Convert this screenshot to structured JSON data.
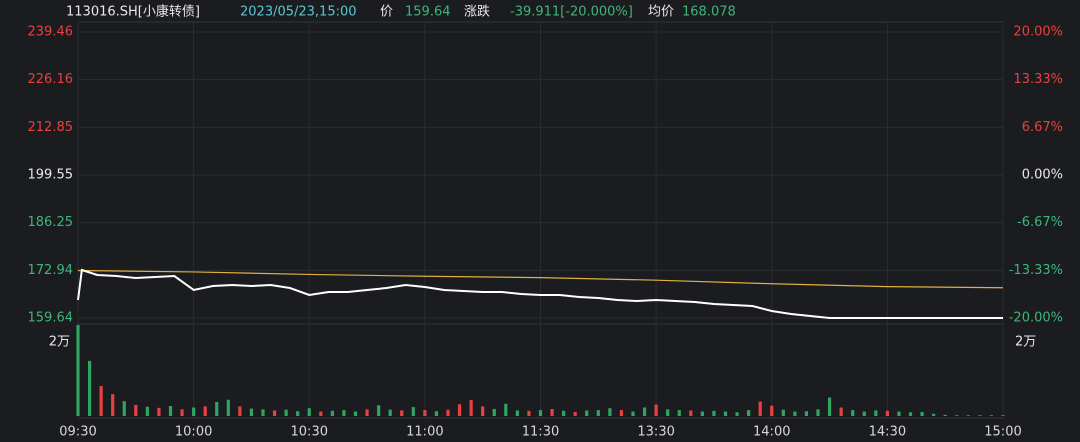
{
  "chart_data": {
    "type": "intraday",
    "header": {
      "code": "113016.SH[小康转债]",
      "time": "2023/05/23,15:00",
      "price_label": "价",
      "price": 159.64,
      "change_label": "涨跌",
      "change": "-39.911[-20.000%]",
      "avg_label": "均价",
      "avg": 168.078
    },
    "prev_close": 199.55,
    "up_color": "#e8413f",
    "down_color": "#2fa563",
    "xlim": [
      0,
      240
    ],
    "xticks": [
      {
        "value": 0,
        "label": "09:30"
      },
      {
        "value": 30,
        "label": "10:00"
      },
      {
        "value": 60,
        "label": "10:30"
      },
      {
        "value": 90,
        "label": "11:00"
      },
      {
        "value": 120,
        "label": "11:30"
      },
      {
        "value": 150,
        "label": "13:30"
      },
      {
        "value": 180,
        "label": "14:00"
      },
      {
        "value": 210,
        "label": "14:30"
      },
      {
        "value": 240,
        "label": "15:00"
      }
    ],
    "ylim": [
      159.64,
      239.46
    ],
    "yticks": [
      239.46,
      226.16,
      212.85,
      199.55,
      186.25,
      172.94,
      159.64
    ],
    "y2lim": [
      -20,
      20
    ],
    "y2ticks": [
      {
        "value": 20,
        "label": "20.00%"
      },
      {
        "value": 13.33,
        "label": "13.33%"
      },
      {
        "value": 6.67,
        "label": "6.67%"
      },
      {
        "value": 0,
        "label": "0.00%"
      },
      {
        "value": -6.67,
        "label": "-6.67%"
      },
      {
        "value": -13.33,
        "label": "-13.33%"
      },
      {
        "value": -20,
        "label": "-20.00%"
      }
    ],
    "series": [
      {
        "color": "#ffffff",
        "x": [
          0,
          1,
          5,
          10,
          15,
          20,
          25,
          30,
          35,
          40,
          45,
          50,
          55,
          60,
          65,
          70,
          75,
          80,
          85,
          90,
          95,
          100,
          105,
          110,
          115,
          120,
          125,
          130,
          135,
          140,
          145,
          150,
          155,
          160,
          165,
          170,
          175,
          180,
          185,
          190,
          195,
          200,
          205,
          210,
          215,
          220,
          225,
          230,
          235,
          240
        ],
        "values": [
          164.66,
          173.04,
          171.64,
          171.36,
          170.8,
          171.08,
          171.36,
          167.46,
          168.57,
          168.85,
          168.57,
          168.85,
          168.01,
          166.06,
          166.9,
          166.9,
          167.46,
          168.01,
          168.85,
          168.29,
          167.46,
          167.18,
          166.9,
          166.9,
          166.34,
          166.06,
          166.06,
          165.5,
          165.22,
          164.66,
          164.38,
          164.66,
          164.38,
          164.1,
          163.55,
          163.27,
          162.99,
          161.59,
          160.75,
          160.2,
          159.64,
          159.64,
          159.64,
          159.64,
          159.64,
          159.64,
          159.64,
          159.64,
          159.64,
          159.64
        ]
      },
      {
        "color": "#e0b040",
        "x": [
          0,
          30,
          60,
          90,
          120,
          150,
          180,
          210,
          240
        ],
        "values": [
          172.9,
          172.5,
          171.8,
          171.3,
          170.9,
          170.2,
          169.2,
          168.4,
          168.078
        ]
      }
    ],
    "volume": {
      "ylim": [
        0,
        24600
      ],
      "yticks": [
        {
          "value": 20000,
          "label": "2万"
        }
      ],
      "x": [
        0,
        3,
        6,
        9,
        12,
        15,
        18,
        21,
        24,
        27,
        30,
        33,
        36,
        39,
        42,
        45,
        48,
        51,
        54,
        57,
        60,
        63,
        66,
        69,
        72,
        75,
        78,
        81,
        84,
        87,
        90,
        93,
        96,
        99,
        102,
        105,
        108,
        111,
        114,
        117,
        120,
        123,
        126,
        129,
        132,
        135,
        138,
        141,
        144,
        147,
        150,
        153,
        156,
        159,
        162,
        165,
        168,
        171,
        174,
        177,
        180,
        183,
        186,
        189,
        192,
        195,
        198,
        201,
        204,
        207,
        210,
        213,
        216,
        219,
        222,
        225,
        228,
        231,
        234,
        237,
        240
      ],
      "values": [
        24600,
        14900,
        8100,
        5900,
        4000,
        3000,
        2500,
        2200,
        2700,
        1800,
        2300,
        2600,
        3800,
        4400,
        2600,
        2000,
        1800,
        1500,
        1700,
        1300,
        2100,
        1200,
        1400,
        1600,
        1200,
        1800,
        2900,
        1700,
        1500,
        2400,
        1600,
        1300,
        1700,
        3200,
        4300,
        2600,
        1900,
        3300,
        1500,
        1400,
        1600,
        1900,
        1400,
        1100,
        1500,
        1600,
        2100,
        1600,
        1200,
        2300,
        3100,
        1800,
        1600,
        1500,
        1200,
        1400,
        1200,
        1000,
        1600,
        3900,
        2800,
        1700,
        1200,
        1300,
        1800,
        5000,
        2300,
        1600,
        1200,
        1500,
        1400,
        1200,
        1000,
        1100,
        600,
        300,
        200,
        200,
        200,
        200,
        200
      ],
      "up": [
        false,
        false,
        true,
        true,
        false,
        true,
        false,
        true,
        false,
        true,
        false,
        true,
        false,
        false,
        true,
        false,
        false,
        true,
        false,
        false,
        false,
        true,
        false,
        false,
        false,
        true,
        false,
        false,
        true,
        false,
        true,
        false,
        true,
        true,
        true,
        true,
        false,
        false,
        false,
        true,
        false,
        true,
        false,
        true,
        false,
        false,
        false,
        true,
        false,
        false,
        true,
        false,
        false,
        true,
        false,
        false,
        false,
        false,
        false,
        true,
        true,
        false,
        false,
        false,
        false,
        false,
        true,
        false,
        false,
        false,
        true,
        false,
        false,
        false,
        false,
        false,
        false,
        false,
        false,
        false,
        false
      ]
    }
  }
}
